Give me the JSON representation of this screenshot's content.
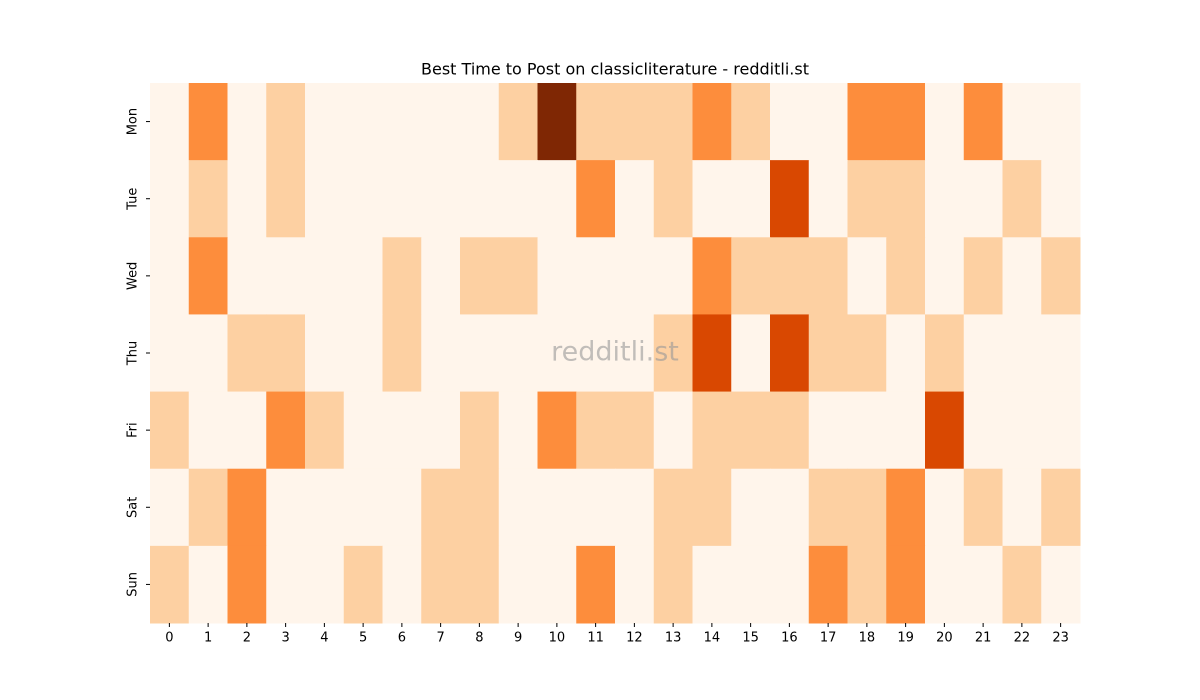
{
  "chart_data": {
    "type": "heatmap",
    "title": "Best Time to Post on classicliterature - redditli.st",
    "watermark": "redditli.st",
    "x_categories": [
      "0",
      "1",
      "2",
      "3",
      "4",
      "5",
      "6",
      "7",
      "8",
      "9",
      "10",
      "11",
      "12",
      "13",
      "14",
      "15",
      "16",
      "17",
      "18",
      "19",
      "20",
      "21",
      "22",
      "23"
    ],
    "y_categories": [
      "Mon",
      "Tue",
      "Wed",
      "Thu",
      "Fri",
      "Sat",
      "Sun"
    ],
    "values": [
      [
        0,
        2,
        0,
        1,
        0,
        0,
        0,
        0,
        0,
        1,
        4,
        1,
        1,
        1,
        2,
        1,
        0,
        0,
        2,
        2,
        0,
        2,
        0,
        0
      ],
      [
        0,
        1,
        0,
        1,
        0,
        0,
        0,
        0,
        0,
        0,
        0,
        2,
        0,
        1,
        0,
        0,
        3,
        0,
        1,
        1,
        0,
        0,
        1,
        0
      ],
      [
        0,
        2,
        0,
        0,
        0,
        0,
        1,
        0,
        1,
        1,
        0,
        0,
        0,
        0,
        2,
        1,
        1,
        1,
        0,
        1,
        0,
        1,
        0,
        1
      ],
      [
        0,
        0,
        1,
        1,
        0,
        0,
        1,
        0,
        0,
        0,
        0,
        0,
        0,
        1,
        3,
        0,
        3,
        1,
        1,
        0,
        1,
        0,
        0,
        0
      ],
      [
        1,
        0,
        0,
        2,
        1,
        0,
        0,
        0,
        1,
        0,
        2,
        1,
        1,
        0,
        1,
        1,
        1,
        0,
        0,
        0,
        3,
        0,
        0,
        0
      ],
      [
        0,
        1,
        2,
        0,
        0,
        0,
        0,
        1,
        1,
        0,
        0,
        0,
        0,
        1,
        1,
        0,
        0,
        1,
        1,
        2,
        0,
        1,
        0,
        1
      ],
      [
        1,
        0,
        2,
        0,
        0,
        1,
        0,
        1,
        1,
        0,
        0,
        2,
        0,
        1,
        0,
        0,
        0,
        2,
        1,
        2,
        0,
        0,
        1,
        0
      ]
    ],
    "color_scale": [
      "#fff5eb",
      "#fdd0a2",
      "#fd8d3c",
      "#d94801",
      "#7f2704"
    ]
  }
}
